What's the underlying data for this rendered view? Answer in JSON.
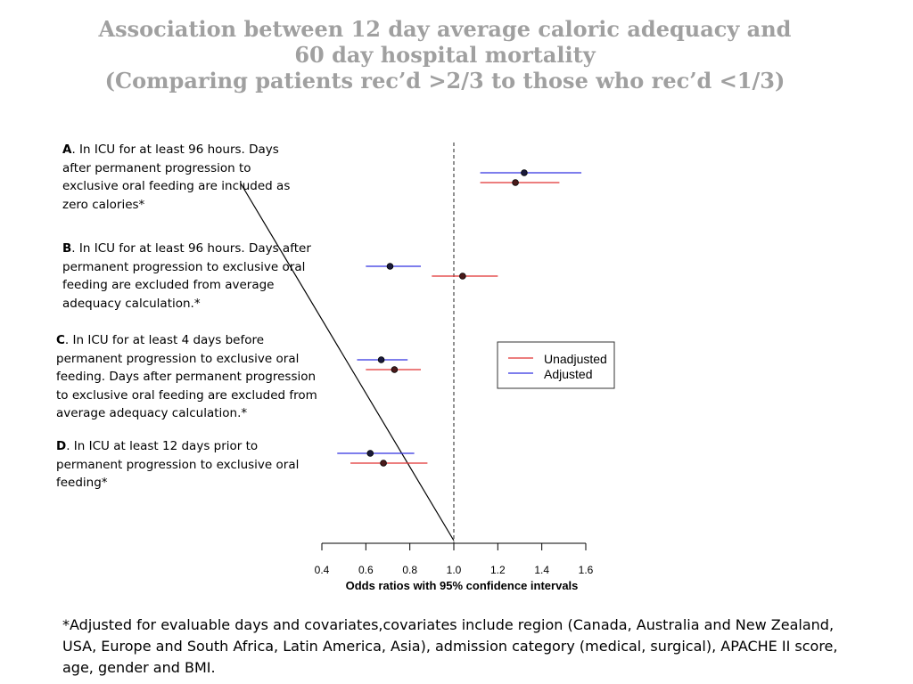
{
  "title": {
    "line1": "Association between 12 day average caloric adequacy and",
    "line2": "60 day hospital mortality",
    "line3": "(Comparing patients rec’d >2/3 to those who rec’d <1/3)"
  },
  "panels": [
    {
      "letter": "A",
      "text": ". In ICU for at least 96 hours. Days after permanent progression to exclusive oral feeding are included as zero calories*"
    },
    {
      "letter": "B",
      "text": ". In ICU for at least 96 hours. Days after permanent progression to exclusive oral feeding are excluded from average adequacy calculation.*"
    },
    {
      "letter": "C",
      "text": ". In ICU for at least 4 days before permanent progression to exclusive oral feeding. Days after permanent progression to exclusive oral feeding are excluded from average adequacy calculation.*"
    },
    {
      "letter": "D",
      "text": ". In ICU at least 12 days prior to permanent progression to exclusive oral feeding*"
    }
  ],
  "footnote": "*Adjusted for evaluable days and covariates,covariates include region (Canada, Australia and New Zealand, USA, Europe and South Africa, Latin America, Asia), admission category (medical, surgical), APACHE II score, age, gender and BMI.",
  "colors": {
    "unadjusted": "#e03030",
    "adjusted": "#3030e0",
    "point_adjusted": "#1a1a3a",
    "point_unadjusted": "#4a1a1a",
    "title": "#a0a0a0"
  },
  "chart_data": {
    "type": "scatter",
    "xlabel": "Odds ratios with 95% confidence intervals",
    "xlim": [
      0.4,
      1.6
    ],
    "ticks": [
      "0.4",
      "0.6",
      "0.8",
      "1.0",
      "1.2",
      "1.4",
      "1.6"
    ],
    "reference_line": 1.0,
    "grid": false,
    "legend": {
      "position": "right",
      "entries": [
        "Unadjusted",
        "Adjusted"
      ]
    },
    "groups": [
      "A",
      "B",
      "C",
      "D"
    ],
    "series": [
      {
        "name": "Adjusted",
        "estimates": [
          1.32,
          0.71,
          0.67,
          0.62
        ],
        "lower": [
          1.12,
          0.6,
          0.56,
          0.47
        ],
        "upper": [
          1.58,
          0.85,
          0.79,
          0.82
        ]
      },
      {
        "name": "Unadjusted",
        "estimates": [
          1.28,
          1.04,
          0.73,
          0.68
        ],
        "lower": [
          1.12,
          0.9,
          0.6,
          0.53
        ],
        "upper": [
          1.48,
          1.2,
          0.85,
          0.88
        ]
      }
    ]
  }
}
